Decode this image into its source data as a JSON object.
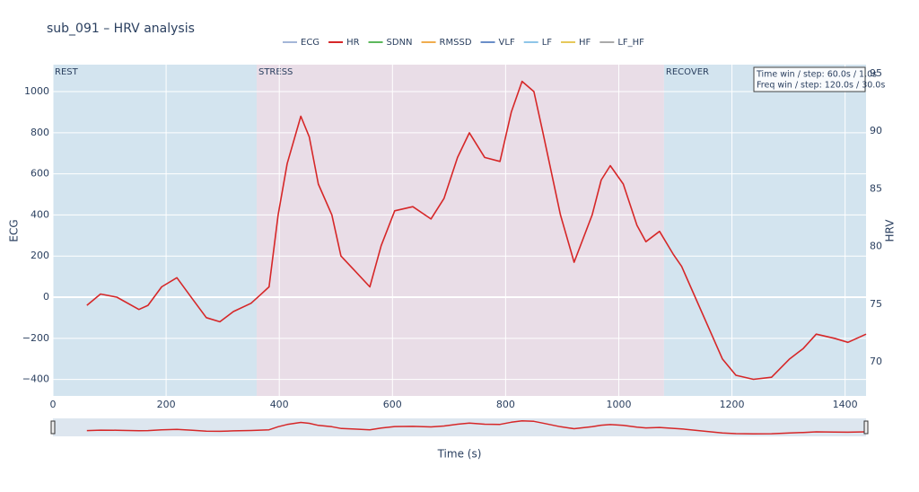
{
  "chart_data": {
    "type": "line",
    "title": "sub_091 – HRV analysis",
    "xlabel": "Time (s)",
    "ylabel": "ECG",
    "y2label": "HRV",
    "xlim": [
      0,
      1437
    ],
    "xticks": [
      0,
      200,
      400,
      600,
      800,
      1000,
      1200,
      1400
    ],
    "ylim": [
      -480,
      1131
    ],
    "yticks": [
      {
        "value": -400,
        "label": "−400"
      },
      {
        "value": -200,
        "label": "−200"
      },
      0,
      200,
      400,
      600,
      800,
      1000
    ],
    "y2lim": [
      67.04,
      95.78
    ],
    "y2ticks": [
      70,
      75,
      80,
      85,
      90,
      95
    ],
    "grid": true,
    "legend": "top",
    "regions": [
      {
        "label": "REST",
        "start": 0,
        "end": 360,
        "color": "#d3e4ef"
      },
      {
        "label": "STRESS",
        "start": 360,
        "end": 1080,
        "color": "#e9dde7"
      },
      {
        "label": "RECOVER",
        "start": 1080,
        "end": 1437,
        "color": "#d3e4ef"
      }
    ],
    "annotation": [
      "Time win / step: 60.0s / 1.0s",
      "Freq win / step: 120.0s / 30.0s"
    ],
    "x": [
      60,
      84,
      113,
      152,
      168,
      192,
      219,
      247,
      271,
      295,
      319,
      350,
      366,
      382,
      398,
      414,
      438,
      453,
      469,
      493,
      509,
      533,
      560,
      580,
      604,
      636,
      668,
      691,
      715,
      736,
      763,
      790,
      810,
      829,
      850,
      866,
      897,
      921,
      953,
      969,
      985,
      1008,
      1032,
      1048,
      1072,
      1096,
      1111,
      1135,
      1159,
      1183,
      1207,
      1238,
      1270,
      1302,
      1326,
      1349,
      1381,
      1405,
      1437
    ],
    "series": [
      {
        "name": "ECG",
        "color": "#a4b6d8"
      },
      {
        "name": "HR",
        "color": "#d62728",
        "axis": "y2",
        "values": [
          74.9,
          75.88,
          75.61,
          74.54,
          74.9,
          76.5,
          77.3,
          75.43,
          73.83,
          73.47,
          74.36,
          75.08,
          75.79,
          76.5,
          82.74,
          87.2,
          91.3,
          89.52,
          85.42,
          82.74,
          79.18,
          77.93,
          76.5,
          80.07,
          83.1,
          83.46,
          82.39,
          84.17,
          87.73,
          89.87,
          87.73,
          87.38,
          91.66,
          94.33,
          93.44,
          89.87,
          82.74,
          78.64,
          82.74,
          85.77,
          87.02,
          85.42,
          81.85,
          80.42,
          81.32,
          79.35,
          78.28,
          75.61,
          72.94,
          70.26,
          68.83,
          68.48,
          68.66,
          70.26,
          71.15,
          72.4,
          72.04,
          71.69,
          72.4
        ]
      },
      {
        "name": "SDNN",
        "color": "#5cb85c"
      },
      {
        "name": "RMSSD",
        "color": "#f0ad4e"
      },
      {
        "name": "VLF",
        "color": "#6a8ec8"
      },
      {
        "name": "LF",
        "color": "#8ec5e8"
      },
      {
        "name": "HF",
        "color": "#e6c85a"
      },
      {
        "name": "LF_HF",
        "color": "#aaaaaa"
      }
    ]
  }
}
